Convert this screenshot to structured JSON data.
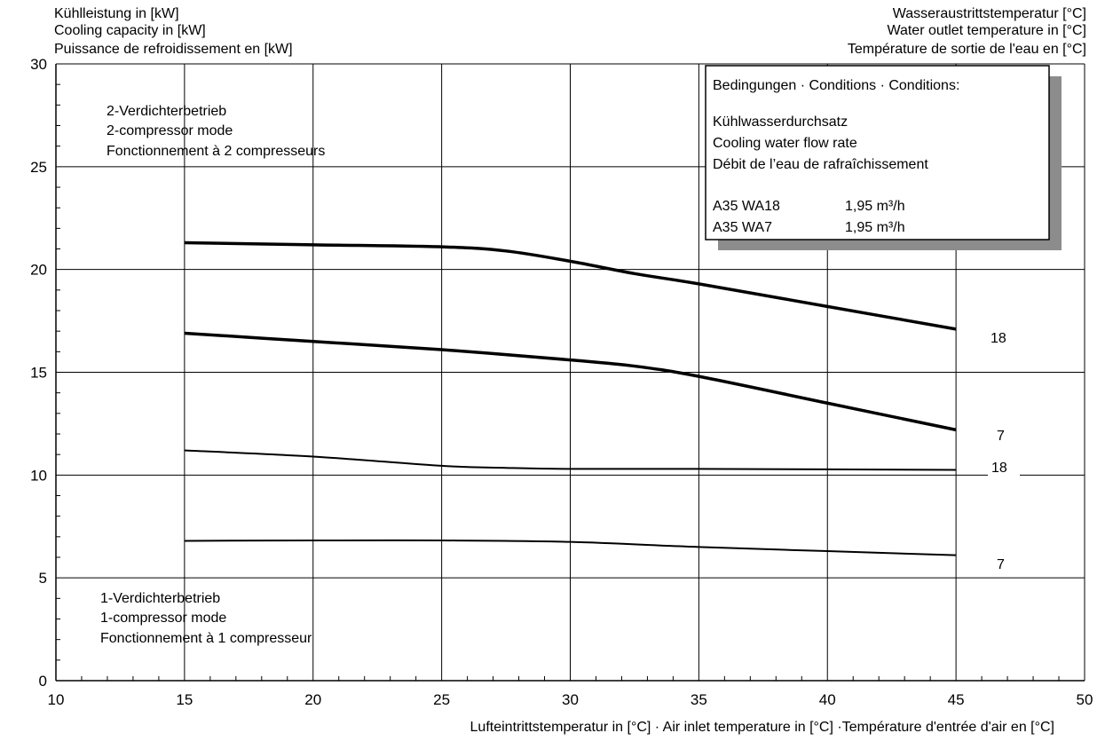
{
  "chart_data": {
    "type": "line",
    "y_axis_title": [
      "Kühlleistung in [kW]",
      "Cooling capacity in [kW]",
      "Puissance de refroidissement en [kW]"
    ],
    "series_axis_title": [
      "Wasseraustrittstemperatur [°C]",
      "Water outlet temperature in [°C]",
      "Température de sortie de l'eau en [°C]"
    ],
    "xlabel": "Lufteintrittstemperatur in [°C] · Air inlet temperature in [°C] ·Température d'entrée d'air en [°C]",
    "xlim": [
      10,
      50
    ],
    "ylim": [
      0,
      30
    ],
    "x_ticks": [
      10,
      15,
      20,
      25,
      30,
      35,
      40,
      45,
      50
    ],
    "y_ticks": [
      0,
      5,
      10,
      15,
      20,
      25,
      30
    ],
    "grid": true,
    "annotations": {
      "mode2": [
        "2-Verdichterbetrieb",
        "2-compressor mode",
        "Fonctionnement à 2 compresseurs"
      ],
      "mode1": [
        "1-Verdichterbetrieb",
        "1-compressor mode",
        "Fonctionnement à 1 compresseur"
      ]
    },
    "conditions_box": {
      "heading": "Bedingungen · Conditions · Conditions:",
      "flow_lines": [
        "Kühlwasserdurchsatz",
        "Cooling water flow rate",
        "Débit de l’eau de rafraîchissement"
      ],
      "rows": [
        {
          "label": "A35 WA18",
          "value": "1,95 m³/h"
        },
        {
          "label": "A35 WA7",
          "value": "1,95 m³/h"
        }
      ]
    },
    "series": [
      {
        "name": "18",
        "mode": "2-compressor",
        "points": [
          [
            15,
            21.3
          ],
          [
            20,
            21.2
          ],
          [
            25,
            21.1
          ],
          [
            27.5,
            20.9
          ],
          [
            30,
            20.4
          ],
          [
            32.5,
            19.8
          ],
          [
            35,
            19.3
          ],
          [
            40,
            18.2
          ],
          [
            45,
            17.1
          ]
        ]
      },
      {
        "name": "7",
        "mode": "2-compressor",
        "points": [
          [
            15,
            16.9
          ],
          [
            20,
            16.5
          ],
          [
            25,
            16.1
          ],
          [
            30,
            15.6
          ],
          [
            32.5,
            15.3
          ],
          [
            35,
            14.8
          ],
          [
            40,
            13.5
          ],
          [
            45,
            12.2
          ]
        ]
      },
      {
        "name": "18",
        "mode": "1-compressor",
        "points": [
          [
            15,
            11.2
          ],
          [
            20,
            10.9
          ],
          [
            25,
            10.45
          ],
          [
            27.5,
            10.35
          ],
          [
            30,
            10.3
          ],
          [
            35,
            10.3
          ],
          [
            40,
            10.28
          ],
          [
            45,
            10.25
          ]
        ]
      },
      {
        "name": "7",
        "mode": "1-compressor",
        "points": [
          [
            15,
            6.8
          ],
          [
            20,
            6.82
          ],
          [
            25,
            6.82
          ],
          [
            30,
            6.75
          ],
          [
            35,
            6.5
          ],
          [
            40,
            6.3
          ],
          [
            45,
            6.1
          ]
        ]
      }
    ]
  }
}
